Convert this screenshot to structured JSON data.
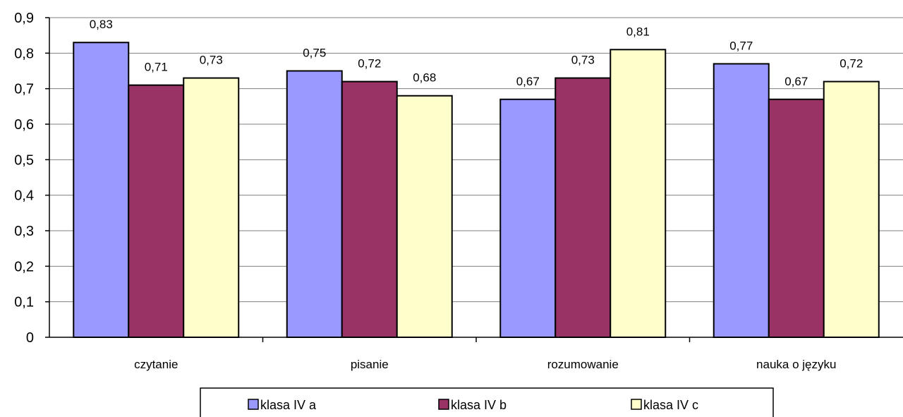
{
  "chart_data": {
    "type": "bar",
    "categories": [
      "czytanie",
      "pisanie",
      "rozumowanie",
      "nauka o języku"
    ],
    "series": [
      {
        "name": "klasa IV a",
        "color": "#9999FF",
        "values": [
          0.83,
          0.75,
          0.67,
          0.77
        ]
      },
      {
        "name": "klasa IV b",
        "color": "#993366",
        "values": [
          0.71,
          0.72,
          0.73,
          0.67
        ]
      },
      {
        "name": "klasa IV c",
        "color": "#FFFFCC",
        "values": [
          0.73,
          0.68,
          0.81,
          0.72
        ]
      }
    ],
    "value_labels": [
      [
        "0,83",
        "0,75",
        "0,67",
        "0,77"
      ],
      [
        "0,71",
        "0,72",
        "0,73",
        "0,67"
      ],
      [
        "0,73",
        "0,68",
        "0,81",
        "0,72"
      ]
    ],
    "ylim": [
      0,
      0.9
    ],
    "yticks": [
      0,
      0.1,
      0.2,
      0.3,
      0.4,
      0.5,
      0.6,
      0.7,
      0.8,
      0.9
    ],
    "ytick_labels": [
      "0",
      "0,1",
      "0,2",
      "0,3",
      "0,4",
      "0,5",
      "0,6",
      "0,7",
      "0,8",
      "0,9"
    ],
    "grid": true,
    "legend_position": "bottom"
  }
}
